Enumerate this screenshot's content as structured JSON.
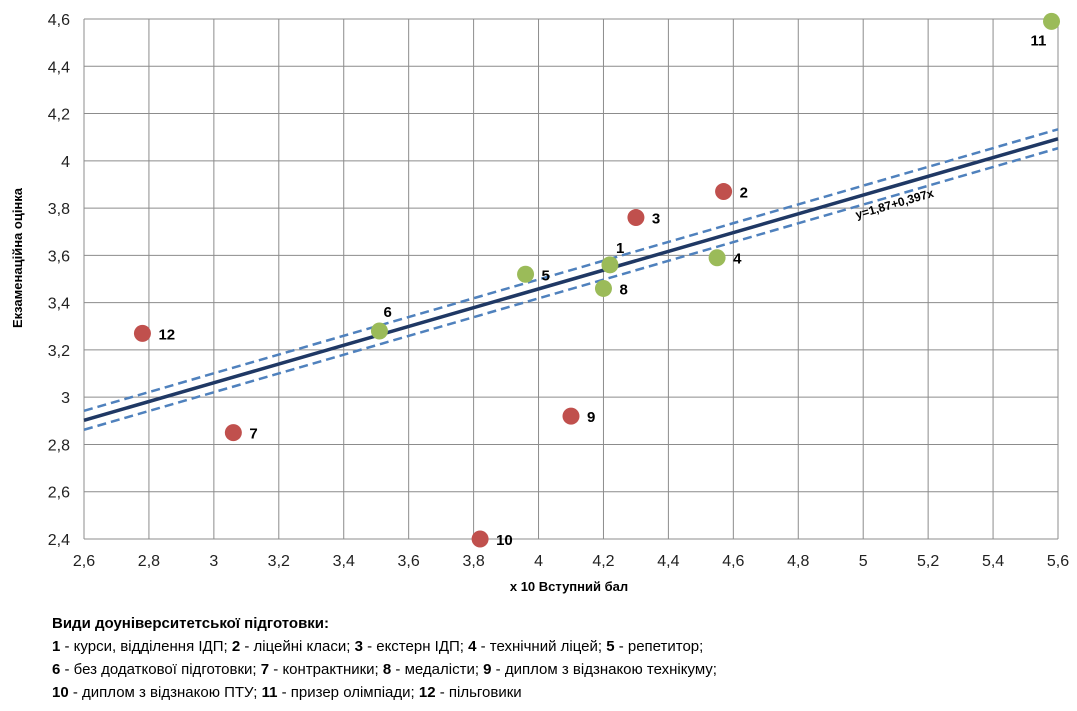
{
  "chart_data": {
    "type": "scatter",
    "title": "",
    "xlabel": "x 10 Вступний бал",
    "ylabel": "Екзаменаційна оцінка",
    "xlim": [
      2.6,
      5.6
    ],
    "ylim": [
      2.4,
      4.6
    ],
    "x_ticks": [
      "2,6",
      "2,8",
      "3",
      "3,2",
      "3,4",
      "3,6",
      "3,8",
      "4",
      "4,2",
      "4,4",
      "4,6",
      "4,8",
      "5",
      "5,2",
      "5,4",
      "5,6"
    ],
    "y_ticks": [
      "2,4",
      "2,6",
      "2,8",
      "3",
      "3,2",
      "3,4",
      "3,6",
      "3,8",
      "4",
      "4,2",
      "4,4",
      "4,6"
    ],
    "grid": true,
    "colors": {
      "green": "#9bbb59",
      "red": "#c0504d",
      "line": "#1f3864",
      "band": "#4f81bd"
    },
    "points": [
      {
        "label": "1",
        "x": 4.22,
        "y": 3.56,
        "color": "green"
      },
      {
        "label": "2",
        "x": 4.57,
        "y": 3.87,
        "color": "red"
      },
      {
        "label": "3",
        "x": 4.3,
        "y": 3.76,
        "color": "red"
      },
      {
        "label": "4",
        "x": 4.55,
        "y": 3.59,
        "color": "green"
      },
      {
        "label": "5",
        "x": 3.96,
        "y": 3.52,
        "color": "green"
      },
      {
        "label": "6",
        "x": 3.51,
        "y": 3.28,
        "color": "green"
      },
      {
        "label": "7",
        "x": 3.06,
        "y": 2.85,
        "color": "red"
      },
      {
        "label": "8",
        "x": 4.2,
        "y": 3.46,
        "color": "green"
      },
      {
        "label": "9",
        "x": 4.1,
        "y": 2.92,
        "color": "red"
      },
      {
        "label": "10",
        "x": 3.82,
        "y": 2.4,
        "color": "red"
      },
      {
        "label": "11",
        "x": 5.58,
        "y": 4.59,
        "color": "green"
      },
      {
        "label": "12",
        "x": 2.78,
        "y": 3.27,
        "color": "red"
      }
    ],
    "regression": {
      "equation": "y=1,87+0,397x",
      "intercept": 1.87,
      "slope": 0.397,
      "band": 0.04
    }
  },
  "legend": {
    "title": "Види доуніверситетської підготовки:",
    "lines": [
      [
        {
          "n": "1",
          "t": " - курси, відділення ІДП; "
        },
        {
          "n": "2",
          "t": " - ліцейні класи; "
        },
        {
          "n": "3",
          "t": " - екстерн ІДП; "
        },
        {
          "n": "4",
          "t": " - технічний ліцей; "
        },
        {
          "n": "5",
          "t": " - репетитор;"
        }
      ],
      [
        {
          "n": "6",
          "t": " - без додаткової підготовки; "
        },
        {
          "n": "7",
          "t": " - контрактники; "
        },
        {
          "n": "8",
          "t": " - медалісти; "
        },
        {
          "n": "9",
          "t": " - диплом з відзнакою технікуму;"
        }
      ],
      [
        {
          "n": "10",
          "t": " - диплом з відзнакою ПТУ; "
        },
        {
          "n": "11",
          "t": " - призер олімпіади; "
        },
        {
          "n": "12",
          "t": " - пільговики"
        }
      ]
    ]
  }
}
